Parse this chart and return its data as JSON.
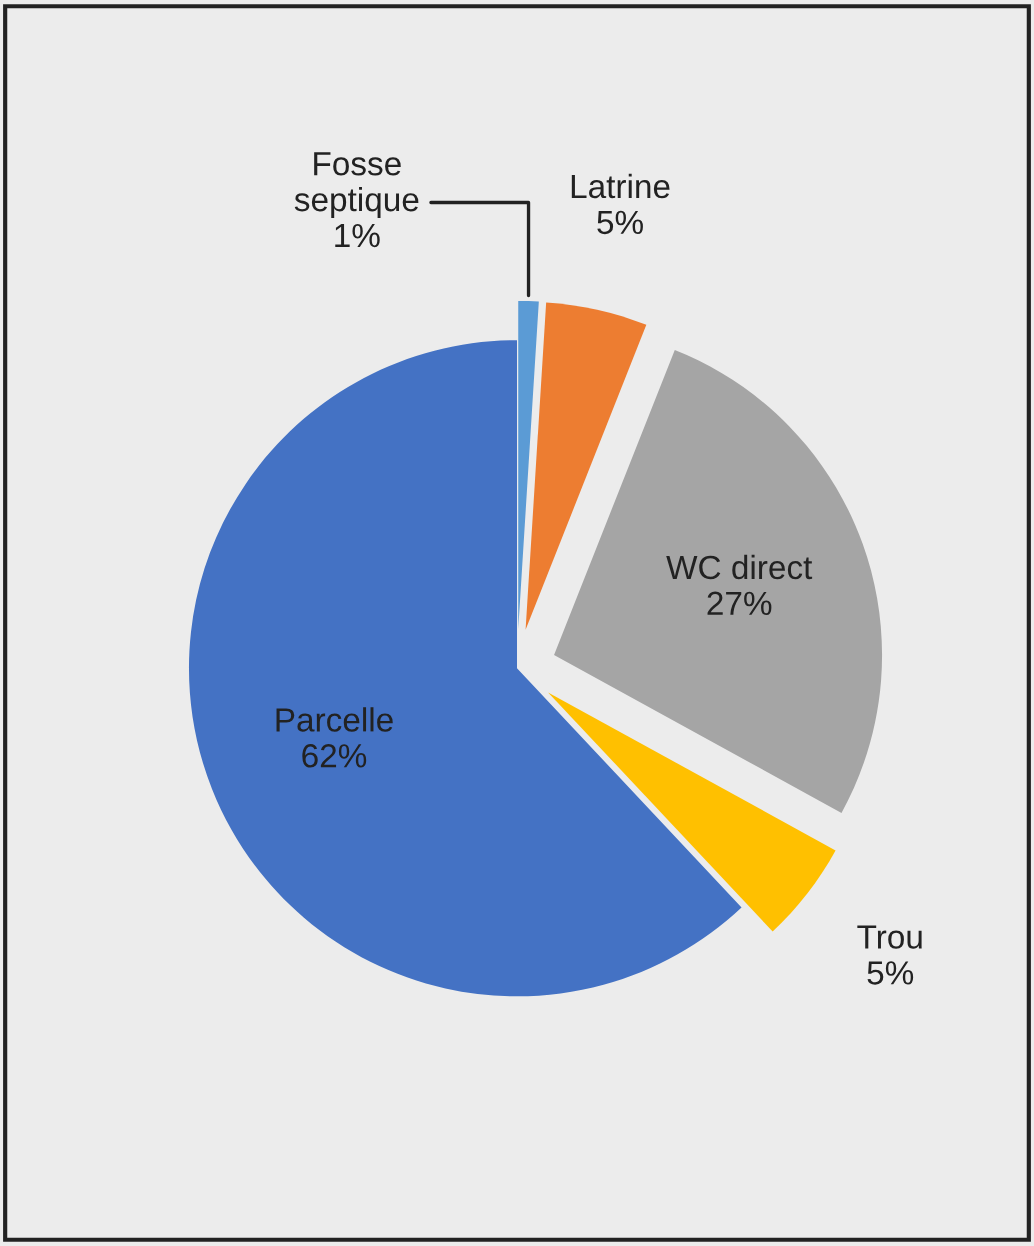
{
  "chart_data": {
    "type": "pie",
    "categories": [
      "Fosse septique",
      "Latrine",
      "WC direct",
      "Trou",
      "Parcelle"
    ],
    "values": [
      1,
      5,
      27,
      5,
      62
    ],
    "value_labels": [
      "1%",
      "5%",
      "27%",
      "5%",
      "62%"
    ],
    "colors": [
      "#5b9bd5",
      "#ed7d31",
      "#a5a5a5",
      "#ffc000",
      "#4472c4"
    ]
  }
}
